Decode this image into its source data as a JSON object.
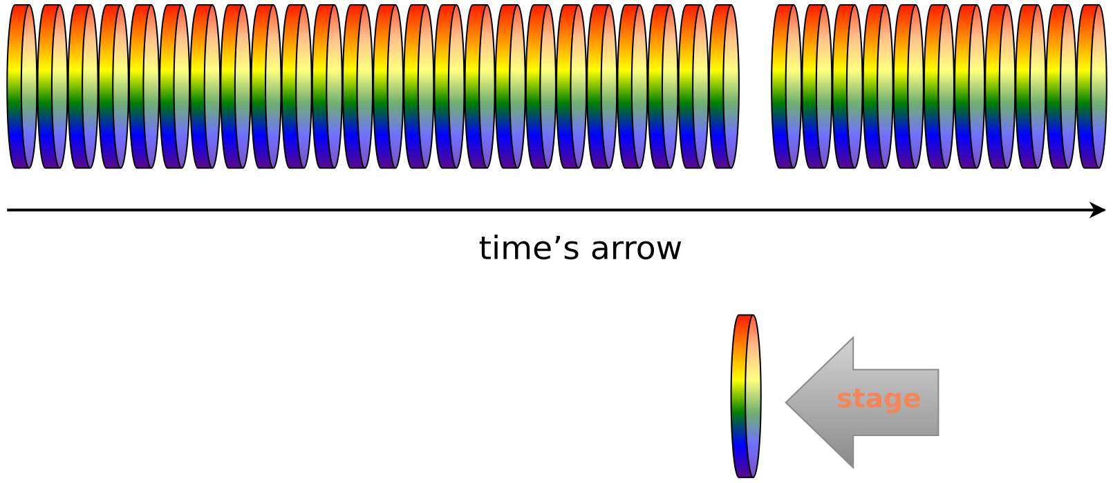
{
  "labels": {
    "arrow": "time’s arrow",
    "stage": "stage"
  }
}
